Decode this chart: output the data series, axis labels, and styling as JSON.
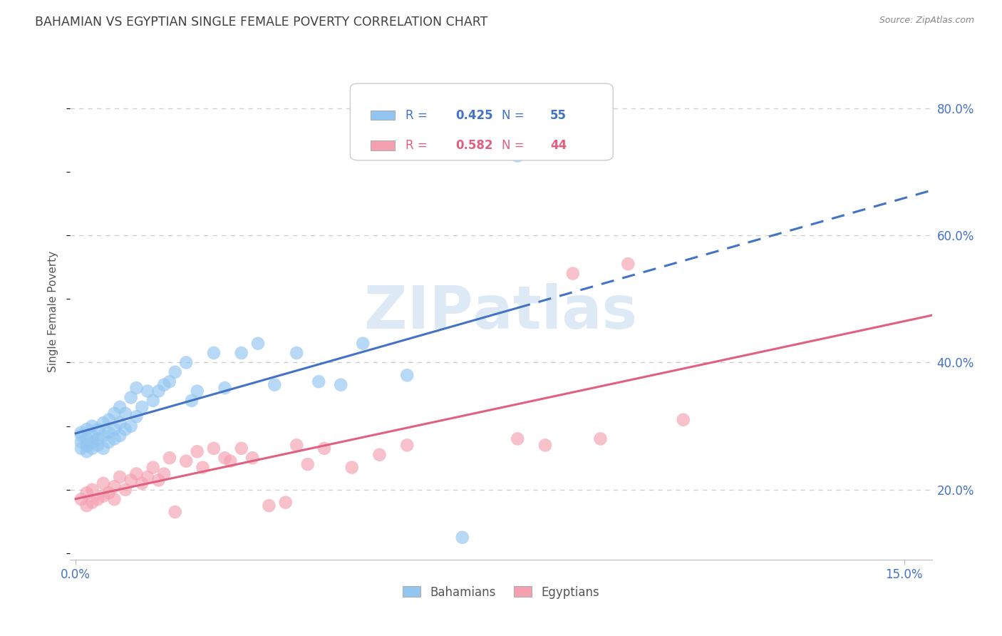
{
  "title": "BAHAMIAN VS EGYPTIAN SINGLE FEMALE POVERTY CORRELATION CHART",
  "source": "Source: ZipAtlas.com",
  "ylabel": "Single Female Poverty",
  "xlim": [
    -0.001,
    0.155
  ],
  "ylim": [
    0.09,
    0.87
  ],
  "x_ticks": [
    0.0,
    0.15
  ],
  "x_tick_labels": [
    "0.0%",
    "15.0%"
  ],
  "y_ticks": [
    0.2,
    0.4,
    0.6,
    0.8
  ],
  "y_tick_labels": [
    "20.0%",
    "40.0%",
    "60.0%",
    "80.0%"
  ],
  "bahamian_R": "0.425",
  "bahamian_N": "55",
  "egyptian_R": "0.582",
  "egyptian_N": "44",
  "bahamian_color": "#92C5F0",
  "egyptian_color": "#F4A0B0",
  "trendline_bahamian_color": "#4472C4",
  "trendline_egyptian_color": "#E06080",
  "background_color": "#ffffff",
  "grid_color": "#cccccc",
  "tick_color": "#4472C4",
  "title_color": "#404040",
  "bahamian_scatter_x": [
    0.001,
    0.001,
    0.001,
    0.001,
    0.002,
    0.002,
    0.002,
    0.002,
    0.003,
    0.003,
    0.003,
    0.003,
    0.004,
    0.004,
    0.004,
    0.005,
    0.005,
    0.005,
    0.006,
    0.006,
    0.006,
    0.007,
    0.007,
    0.007,
    0.008,
    0.008,
    0.008,
    0.009,
    0.009,
    0.01,
    0.01,
    0.011,
    0.011,
    0.012,
    0.013,
    0.014,
    0.015,
    0.016,
    0.017,
    0.018,
    0.02,
    0.021,
    0.022,
    0.025,
    0.027,
    0.03,
    0.033,
    0.036,
    0.04,
    0.044,
    0.048,
    0.052,
    0.06,
    0.07,
    0.08
  ],
  "bahamian_scatter_y": [
    0.265,
    0.275,
    0.285,
    0.29,
    0.26,
    0.27,
    0.28,
    0.295,
    0.265,
    0.275,
    0.285,
    0.3,
    0.27,
    0.28,
    0.295,
    0.265,
    0.285,
    0.305,
    0.275,
    0.29,
    0.31,
    0.28,
    0.295,
    0.32,
    0.285,
    0.305,
    0.33,
    0.295,
    0.32,
    0.3,
    0.345,
    0.315,
    0.36,
    0.33,
    0.355,
    0.34,
    0.355,
    0.365,
    0.37,
    0.385,
    0.4,
    0.34,
    0.355,
    0.415,
    0.36,
    0.415,
    0.43,
    0.365,
    0.415,
    0.37,
    0.365,
    0.43,
    0.38,
    0.125,
    0.725
  ],
  "egyptian_scatter_x": [
    0.001,
    0.002,
    0.002,
    0.003,
    0.003,
    0.004,
    0.005,
    0.005,
    0.006,
    0.007,
    0.007,
    0.008,
    0.009,
    0.01,
    0.011,
    0.012,
    0.013,
    0.014,
    0.015,
    0.016,
    0.017,
    0.018,
    0.02,
    0.022,
    0.023,
    0.025,
    0.027,
    0.028,
    0.03,
    0.032,
    0.035,
    0.038,
    0.04,
    0.042,
    0.045,
    0.05,
    0.055,
    0.06,
    0.08,
    0.085,
    0.09,
    0.095,
    0.1,
    0.11
  ],
  "egyptian_scatter_y": [
    0.185,
    0.175,
    0.195,
    0.18,
    0.2,
    0.185,
    0.19,
    0.21,
    0.195,
    0.185,
    0.205,
    0.22,
    0.2,
    0.215,
    0.225,
    0.21,
    0.22,
    0.235,
    0.215,
    0.225,
    0.25,
    0.165,
    0.245,
    0.26,
    0.235,
    0.265,
    0.25,
    0.245,
    0.265,
    0.25,
    0.175,
    0.18,
    0.27,
    0.24,
    0.265,
    0.235,
    0.255,
    0.27,
    0.28,
    0.27,
    0.54,
    0.28,
    0.555,
    0.31
  ],
  "watermark_color": "#BDD7EE",
  "watermark_alpha": 0.5
}
